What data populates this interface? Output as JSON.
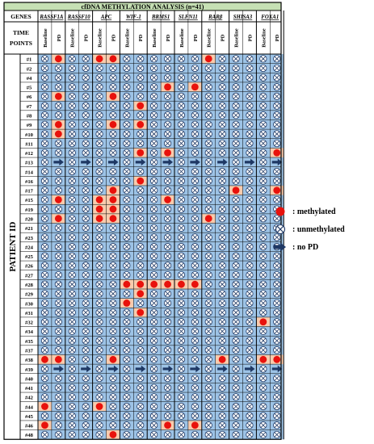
{
  "title": "cfDNA METHYLATION ANALYSIS (n=41)",
  "genes_label": "GENES",
  "time_points_label": "TIME POINTS",
  "patient_id_label": "PATIENT ID",
  "genes": [
    "RASSF1A",
    "RASSF10",
    "APC",
    "WIF-1",
    "BRMS1",
    "SLFN11",
    "RARβ",
    "SHISA3",
    "FOXA1"
  ],
  "time_points": [
    "Baseline",
    "PD"
  ],
  "state_codes": {
    "M": "methylated",
    "U": "unmethylated",
    "N": "no PD"
  },
  "patients": [
    {
      "id": "#1",
      "cells": "UMUUMMUUUUUUMUUUUU"
    },
    {
      "id": "#2",
      "cells": "UUUUUUUUUUUUUUUUUU"
    },
    {
      "id": "#4",
      "cells": "UUUUUUUUUUUUUUUUUU"
    },
    {
      "id": "#5",
      "cells": "UUUUUUUUUMUMUUUUUU"
    },
    {
      "id": "#6",
      "cells": "UMUUUMUUUUUUUUUUUU"
    },
    {
      "id": "#7",
      "cells": "UUUUUUUMUUUUUUUUUU"
    },
    {
      "id": "#8",
      "cells": "UUUUUUUUUUUUUUUUUU"
    },
    {
      "id": "#9",
      "cells": "UMUUUMUMUUUUUUUUUU"
    },
    {
      "id": "#10",
      "cells": "UMUUUUUUUUUUUUUUUU"
    },
    {
      "id": "#11",
      "cells": "UUUUUUUUUUUUUUUUUU"
    },
    {
      "id": "#12",
      "cells": "UUUUUUUMUMUUUUUUUM"
    },
    {
      "id": "#13",
      "cells": "UNUNUNUNUNUNUNUNUN"
    },
    {
      "id": "#14",
      "cells": "UUUUUUUUUUUUUUUUUU"
    },
    {
      "id": "#16",
      "cells": "UUUUUUUMUUUUUUUUUU"
    },
    {
      "id": "#17",
      "cells": "UUUUUMUUUUUUUUMUUM"
    },
    {
      "id": "#15",
      "cells": "UMUUMMUUUMUUUUUUUU"
    },
    {
      "id": "#19",
      "cells": "UUUUMMUUUUUUUUUUUU"
    },
    {
      "id": "#20",
      "cells": "UMUUMMUUUUUUMUUUUU"
    },
    {
      "id": "#21",
      "cells": "UUUUUUUUUUUUUUUUUU"
    },
    {
      "id": "#23",
      "cells": "UUUUUUUUUUUUUUUUUU"
    },
    {
      "id": "#24",
      "cells": "UUUUUUUUUUUUUUUUUU"
    },
    {
      "id": "#25",
      "cells": "UUUUUUUUUUUUUUUUUU"
    },
    {
      "id": "#26",
      "cells": "UUUUUUUUUUUUUUUUUU"
    },
    {
      "id": "#27",
      "cells": "UUUUUUUUUUUUUUUUUU"
    },
    {
      "id": "#28",
      "cells": "UUUUUUMMMMMMUUUUUU"
    },
    {
      "id": "#29",
      "cells": "UUUUUUUMUUUUUUUUUU"
    },
    {
      "id": "#30",
      "cells": "UUUUUUMUUUUUUUUUUU"
    },
    {
      "id": "#31",
      "cells": "UUUUUUUMUUUUUUUUUU"
    },
    {
      "id": "#32",
      "cells": "UUUUUUUUUUUUUUUUMU"
    },
    {
      "id": "#34",
      "cells": "UUUUUUUUUUUUUUUUUU"
    },
    {
      "id": "#35",
      "cells": "UUUUUUUUUUUUUUUUUU"
    },
    {
      "id": "#37",
      "cells": "UUUUUUUUUUUUUUUUUU"
    },
    {
      "id": "#38",
      "cells": "MMUUUMUUUUUUUMUUMM"
    },
    {
      "id": "#39",
      "cells": "UNUNUNUNUNUNUNUNUN"
    },
    {
      "id": "#40",
      "cells": "UUUUUUUUUUUUUUUUUU"
    },
    {
      "id": "#41",
      "cells": "UUUUUUUUUUUUUUUUUU"
    },
    {
      "id": "#42",
      "cells": "UUUUUUUUUUUUUUUUUU"
    },
    {
      "id": "#44",
      "cells": "MUUUMUUUUUUUUUUUUU"
    },
    {
      "id": "#45",
      "cells": "UUUUUUUUUUUUUUUUUU"
    },
    {
      "id": "#46",
      "cells": "MUUUUUUUUMUMUUUUUU"
    },
    {
      "id": "#48",
      "cells": "UUUUUMUUUUUUUUUUUU"
    }
  ],
  "colors": {
    "title_bg": "#c6e0b4",
    "cell_blue": "#9dc3e6",
    "cell_peach": "#f8cbad",
    "methylated": "#e8120c",
    "unmethylated_stroke": "#1f3864",
    "arrow": "#1f3864"
  },
  "legend": [
    {
      "icon": "methylated-dot-icon",
      "label": ": methylated"
    },
    {
      "icon": "unmethylated-circle-x-icon",
      "label": ": unmethylated"
    },
    {
      "icon": "no-pd-arrow-icon",
      "label": ": no PD"
    }
  ]
}
